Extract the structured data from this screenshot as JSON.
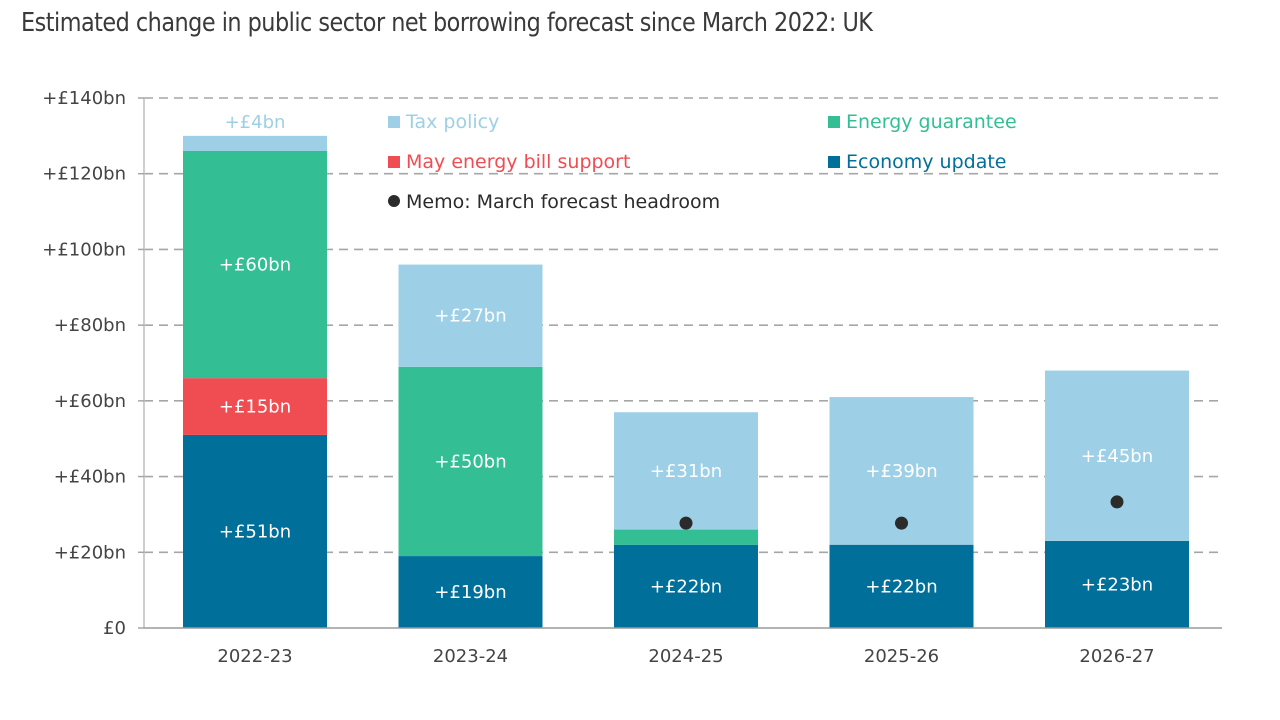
{
  "chart_data": {
    "type": "bar",
    "stacked": true,
    "title": "Estimated change in public sector net borrowing forecast since March 2022: UK",
    "xlabel": "",
    "ylabel": "",
    "ylim": [
      0,
      140
    ],
    "y_ticks": [
      {
        "value": 0,
        "label": "£0"
      },
      {
        "value": 20,
        "label": "+£20bn"
      },
      {
        "value": 40,
        "label": "+£40bn"
      },
      {
        "value": 60,
        "label": "+£60bn"
      },
      {
        "value": 80,
        "label": "+£80bn"
      },
      {
        "value": 100,
        "label": "+£100bn"
      },
      {
        "value": 120,
        "label": "+£120bn"
      },
      {
        "value": 140,
        "label": "+£140bn"
      }
    ],
    "grid": true,
    "grid_style": "dashed",
    "legend_position": "top",
    "categories": [
      "2022-23",
      "2023-24",
      "2024-25",
      "2025-26",
      "2026-27"
    ],
    "series": [
      {
        "name": "Economy update",
        "color": "#006f9a",
        "values": [
          51,
          19,
          22,
          22,
          23
        ],
        "labels": [
          "+£51bn",
          "+£19bn",
          "+£22bn",
          "+£22bn",
          "+£23bn"
        ]
      },
      {
        "name": "May energy bill support",
        "color": "#ef4d51",
        "values": [
          15,
          0,
          0,
          0,
          0
        ],
        "labels": [
          "+£15bn",
          "",
          "",
          "",
          ""
        ]
      },
      {
        "name": "Energy guarantee",
        "color": "#33bf93",
        "values": [
          60,
          50,
          4,
          0,
          0
        ],
        "labels": [
          "+£60bn",
          "+£50bn",
          "",
          "",
          ""
        ]
      },
      {
        "name": "Tax policy",
        "color": "#9dd0e6",
        "values": [
          4,
          27,
          31,
          39,
          45
        ],
        "labels": [
          "+£4bn",
          "+£27bn",
          "+£31bn",
          "+£39bn",
          "+£45bn"
        ]
      }
    ],
    "memo": {
      "name": "Memo: March forecast headroom",
      "color": "#2b2b2b",
      "values": [
        null,
        null,
        27.7,
        27.7,
        33.3
      ]
    },
    "legend": [
      {
        "name": "Tax policy",
        "color": "#9dd0e6",
        "marker": "square"
      },
      {
        "name": "Energy guarantee",
        "color": "#33bf93",
        "marker": "square"
      },
      {
        "name": "May energy bill support",
        "color": "#ef4d51",
        "marker": "square"
      },
      {
        "name": "Economy update",
        "color": "#006f9a",
        "marker": "square"
      },
      {
        "name": "Memo: March forecast headroom",
        "color": "#2b2b2b",
        "marker": "circle"
      }
    ]
  }
}
